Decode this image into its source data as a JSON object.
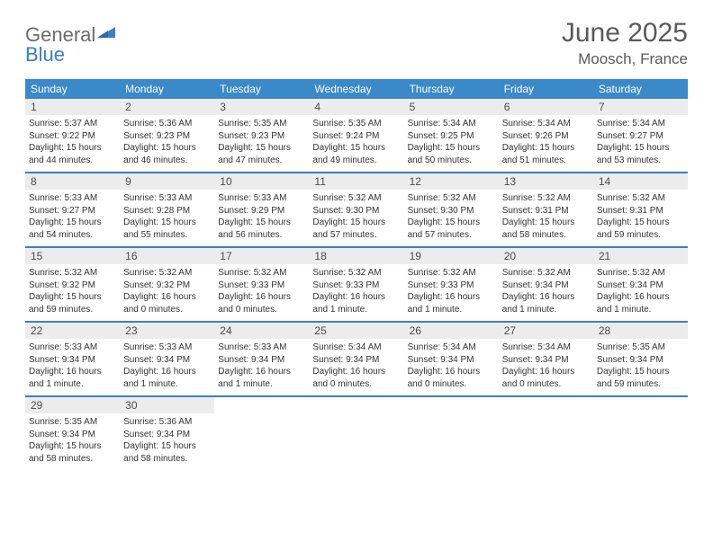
{
  "logo": {
    "text1": "General",
    "text2": "Blue"
  },
  "title": "June 2025",
  "location": "Moosch, France",
  "colors": {
    "header_bg": "#3a89c9",
    "header_text": "#ffffff",
    "rule": "#3a7fc4",
    "daynum_bg": "#ececec",
    "daynum_text": "#4a4a4a",
    "body_text": "#333333",
    "logo_gray": "#6b6b6b",
    "logo_blue": "#3a7fc4",
    "title_color": "#5a5a5a"
  },
  "typography": {
    "title_fontsize": 30,
    "location_fontsize": 17,
    "logo_fontsize": 22,
    "dayheader_fontsize": 12,
    "daynum_fontsize": 12,
    "body_fontsize": 10
  },
  "day_headers": [
    "Sunday",
    "Monday",
    "Tuesday",
    "Wednesday",
    "Thursday",
    "Friday",
    "Saturday"
  ],
  "weeks": [
    [
      {
        "n": "1",
        "sr": "Sunrise: 5:37 AM",
        "ss": "Sunset: 9:22 PM",
        "d1": "Daylight: 15 hours",
        "d2": "and 44 minutes."
      },
      {
        "n": "2",
        "sr": "Sunrise: 5:36 AM",
        "ss": "Sunset: 9:23 PM",
        "d1": "Daylight: 15 hours",
        "d2": "and 46 minutes."
      },
      {
        "n": "3",
        "sr": "Sunrise: 5:35 AM",
        "ss": "Sunset: 9:23 PM",
        "d1": "Daylight: 15 hours",
        "d2": "and 47 minutes."
      },
      {
        "n": "4",
        "sr": "Sunrise: 5:35 AM",
        "ss": "Sunset: 9:24 PM",
        "d1": "Daylight: 15 hours",
        "d2": "and 49 minutes."
      },
      {
        "n": "5",
        "sr": "Sunrise: 5:34 AM",
        "ss": "Sunset: 9:25 PM",
        "d1": "Daylight: 15 hours",
        "d2": "and 50 minutes."
      },
      {
        "n": "6",
        "sr": "Sunrise: 5:34 AM",
        "ss": "Sunset: 9:26 PM",
        "d1": "Daylight: 15 hours",
        "d2": "and 51 minutes."
      },
      {
        "n": "7",
        "sr": "Sunrise: 5:34 AM",
        "ss": "Sunset: 9:27 PM",
        "d1": "Daylight: 15 hours",
        "d2": "and 53 minutes."
      }
    ],
    [
      {
        "n": "8",
        "sr": "Sunrise: 5:33 AM",
        "ss": "Sunset: 9:27 PM",
        "d1": "Daylight: 15 hours",
        "d2": "and 54 minutes."
      },
      {
        "n": "9",
        "sr": "Sunrise: 5:33 AM",
        "ss": "Sunset: 9:28 PM",
        "d1": "Daylight: 15 hours",
        "d2": "and 55 minutes."
      },
      {
        "n": "10",
        "sr": "Sunrise: 5:33 AM",
        "ss": "Sunset: 9:29 PM",
        "d1": "Daylight: 15 hours",
        "d2": "and 56 minutes."
      },
      {
        "n": "11",
        "sr": "Sunrise: 5:32 AM",
        "ss": "Sunset: 9:30 PM",
        "d1": "Daylight: 15 hours",
        "d2": "and 57 minutes."
      },
      {
        "n": "12",
        "sr": "Sunrise: 5:32 AM",
        "ss": "Sunset: 9:30 PM",
        "d1": "Daylight: 15 hours",
        "d2": "and 57 minutes."
      },
      {
        "n": "13",
        "sr": "Sunrise: 5:32 AM",
        "ss": "Sunset: 9:31 PM",
        "d1": "Daylight: 15 hours",
        "d2": "and 58 minutes."
      },
      {
        "n": "14",
        "sr": "Sunrise: 5:32 AM",
        "ss": "Sunset: 9:31 PM",
        "d1": "Daylight: 15 hours",
        "d2": "and 59 minutes."
      }
    ],
    [
      {
        "n": "15",
        "sr": "Sunrise: 5:32 AM",
        "ss": "Sunset: 9:32 PM",
        "d1": "Daylight: 15 hours",
        "d2": "and 59 minutes."
      },
      {
        "n": "16",
        "sr": "Sunrise: 5:32 AM",
        "ss": "Sunset: 9:32 PM",
        "d1": "Daylight: 16 hours",
        "d2": "and 0 minutes."
      },
      {
        "n": "17",
        "sr": "Sunrise: 5:32 AM",
        "ss": "Sunset: 9:33 PM",
        "d1": "Daylight: 16 hours",
        "d2": "and 0 minutes."
      },
      {
        "n": "18",
        "sr": "Sunrise: 5:32 AM",
        "ss": "Sunset: 9:33 PM",
        "d1": "Daylight: 16 hours",
        "d2": "and 1 minute."
      },
      {
        "n": "19",
        "sr": "Sunrise: 5:32 AM",
        "ss": "Sunset: 9:33 PM",
        "d1": "Daylight: 16 hours",
        "d2": "and 1 minute."
      },
      {
        "n": "20",
        "sr": "Sunrise: 5:32 AM",
        "ss": "Sunset: 9:34 PM",
        "d1": "Daylight: 16 hours",
        "d2": "and 1 minute."
      },
      {
        "n": "21",
        "sr": "Sunrise: 5:32 AM",
        "ss": "Sunset: 9:34 PM",
        "d1": "Daylight: 16 hours",
        "d2": "and 1 minute."
      }
    ],
    [
      {
        "n": "22",
        "sr": "Sunrise: 5:33 AM",
        "ss": "Sunset: 9:34 PM",
        "d1": "Daylight: 16 hours",
        "d2": "and 1 minute."
      },
      {
        "n": "23",
        "sr": "Sunrise: 5:33 AM",
        "ss": "Sunset: 9:34 PM",
        "d1": "Daylight: 16 hours",
        "d2": "and 1 minute."
      },
      {
        "n": "24",
        "sr": "Sunrise: 5:33 AM",
        "ss": "Sunset: 9:34 PM",
        "d1": "Daylight: 16 hours",
        "d2": "and 1 minute."
      },
      {
        "n": "25",
        "sr": "Sunrise: 5:34 AM",
        "ss": "Sunset: 9:34 PM",
        "d1": "Daylight: 16 hours",
        "d2": "and 0 minutes."
      },
      {
        "n": "26",
        "sr": "Sunrise: 5:34 AM",
        "ss": "Sunset: 9:34 PM",
        "d1": "Daylight: 16 hours",
        "d2": "and 0 minutes."
      },
      {
        "n": "27",
        "sr": "Sunrise: 5:34 AM",
        "ss": "Sunset: 9:34 PM",
        "d1": "Daylight: 16 hours",
        "d2": "and 0 minutes."
      },
      {
        "n": "28",
        "sr": "Sunrise: 5:35 AM",
        "ss": "Sunset: 9:34 PM",
        "d1": "Daylight: 15 hours",
        "d2": "and 59 minutes."
      }
    ],
    [
      {
        "n": "29",
        "sr": "Sunrise: 5:35 AM",
        "ss": "Sunset: 9:34 PM",
        "d1": "Daylight: 15 hours",
        "d2": "and 58 minutes."
      },
      {
        "n": "30",
        "sr": "Sunrise: 5:36 AM",
        "ss": "Sunset: 9:34 PM",
        "d1": "Daylight: 15 hours",
        "d2": "and 58 minutes."
      },
      null,
      null,
      null,
      null,
      null
    ]
  ]
}
